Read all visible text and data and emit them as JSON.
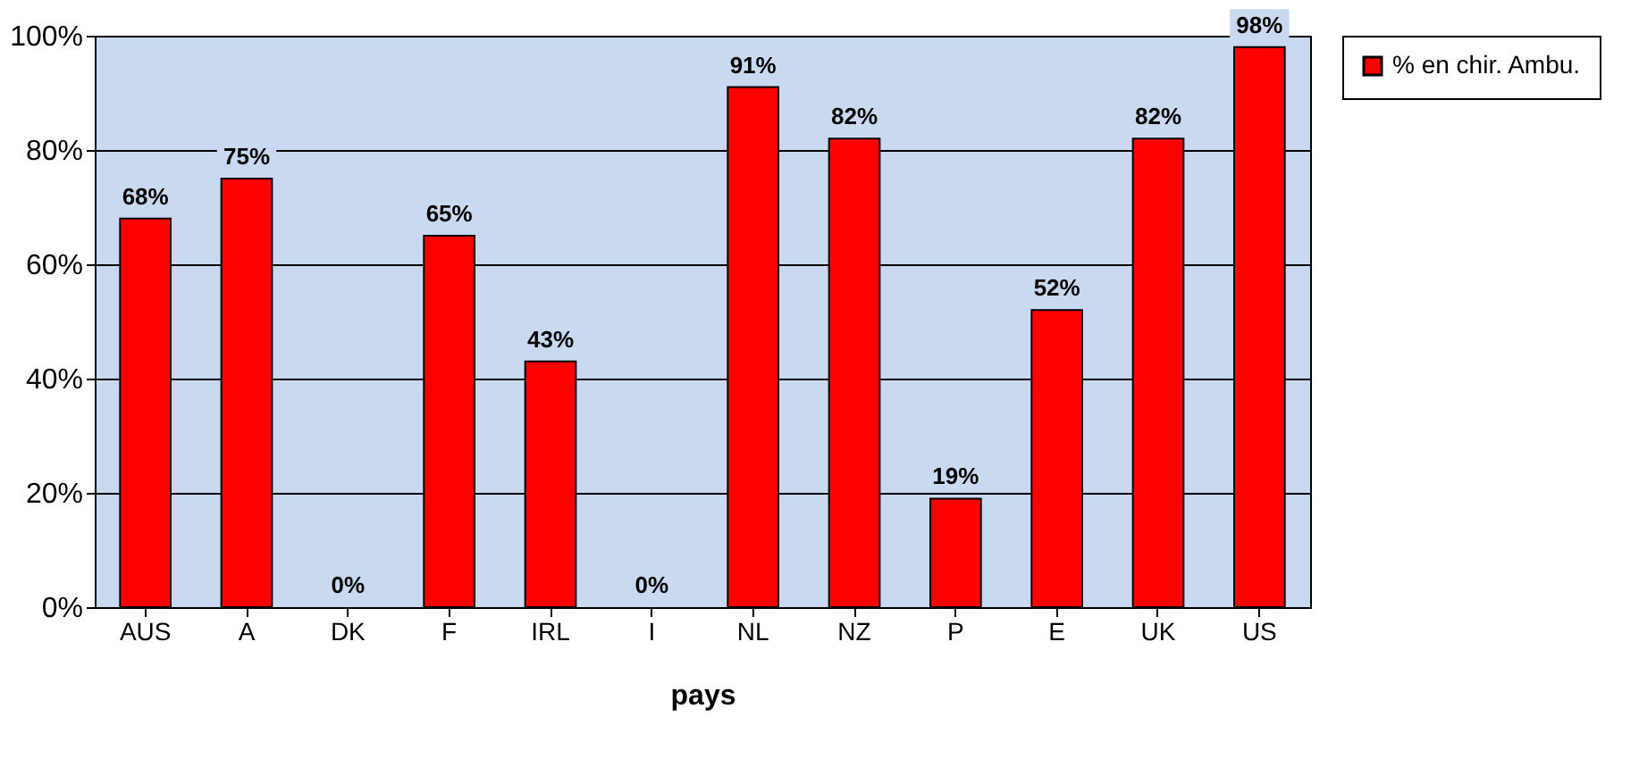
{
  "chart_data": {
    "type": "bar",
    "xlabel": "pays",
    "categories": [
      "AUS",
      "A",
      "DK",
      "F",
      "IRL",
      "I",
      "NL",
      "NZ",
      "P",
      "E",
      "UK",
      "US"
    ],
    "series": [
      {
        "name": "% en chir. Ambu.",
        "color": "#ff0000",
        "values": [
          68,
          75,
          0,
          65,
          43,
          0,
          91,
          82,
          19,
          52,
          82,
          98
        ],
        "value_labels": [
          "68%",
          "75%",
          "0%",
          "65%",
          "43%",
          "0%",
          "91%",
          "82%",
          "19%",
          "52%",
          "82%",
          "98%"
        ]
      }
    ],
    "ylim": [
      0,
      100
    ],
    "yticks": [
      {
        "value": 0,
        "label": "0%"
      },
      {
        "value": 20,
        "label": "20%"
      },
      {
        "value": 40,
        "label": "40%"
      },
      {
        "value": 60,
        "label": "60%"
      },
      {
        "value": 80,
        "label": "80%"
      },
      {
        "value": 100,
        "label": "100%"
      }
    ],
    "grid": "y",
    "legend": "right"
  }
}
